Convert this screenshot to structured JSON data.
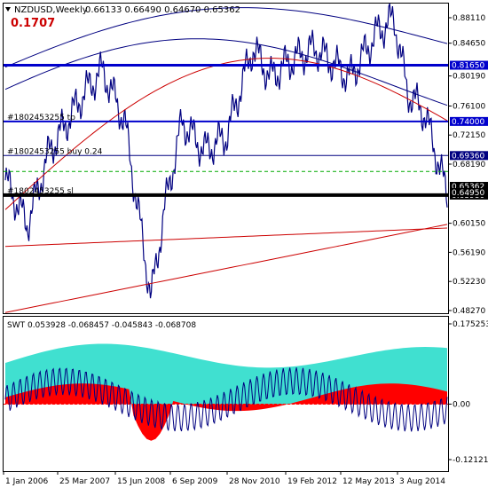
{
  "window": {
    "title": "NZDUSD,Weekly",
    "ohlc": "0.66133 0.66490 0.64670 0.65362",
    "big_value": "0.1707"
  },
  "main_chart": {
    "price_labels": [
      "0.88110",
      "0.84650",
      "0.80190",
      "0.76100",
      "0.72150",
      "0.68190",
      "0.60150",
      "0.56190",
      "0.52230",
      "0.48270"
    ],
    "price_values": [
      0.8811,
      0.8465,
      0.8019,
      0.761,
      0.7215,
      0.6819,
      0.6015,
      0.5619,
      0.5223,
      0.4827
    ],
    "hlines": [
      {
        "value": 0.8165,
        "label": "0.81650",
        "color": "#0000cc",
        "width": 3,
        "text": ""
      },
      {
        "value": 0.74,
        "label": "0.74000",
        "color": "#0000cc",
        "width": 2,
        "text": "#1802453255 tp"
      },
      {
        "value": 0.6936,
        "label": "0.69360",
        "color": "#000080",
        "width": 1,
        "text": "#1802453255 buy 0.24"
      },
      {
        "value": 0.6398,
        "label": "0.63980",
        "color": "#000000",
        "width": 4,
        "text": "#1802453255 sl"
      }
    ],
    "current_price_labels": [
      "0.65362",
      "0.64950"
    ],
    "series_color": "#000080"
  },
  "indicator": {
    "label": "SWT 0.053928 -0.068457 -0.045843 -0.068708",
    "scale_labels": [
      "0.175253",
      "0.00",
      "-0.12121"
    ],
    "scale_values": [
      0.175253,
      0.0,
      -0.12121
    ],
    "fill_color_pos": "#40e0d0",
    "fill_color_neg": "#ff0000"
  },
  "x_axis": {
    "labels": [
      "1 Jan 2006",
      "25 Mar 2007",
      "15 Jun 2008",
      "6 Sep 2009",
      "28 Nov 2010",
      "19 Feb 2012",
      "12 May 2013",
      "3 Aug 2014"
    ]
  }
}
